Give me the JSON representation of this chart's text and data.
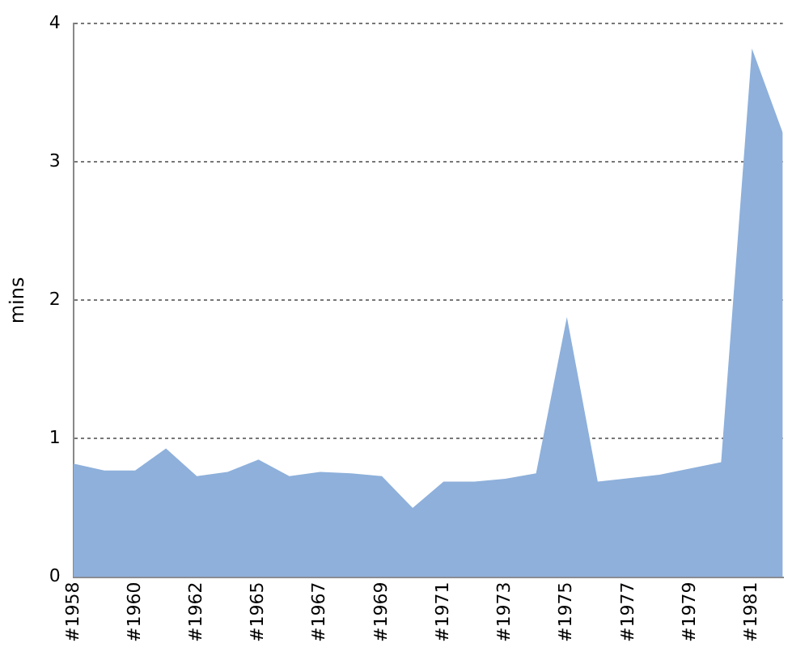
{
  "chart_data": {
    "type": "area",
    "ylabel": "mins",
    "categories": [
      "#1958",
      null,
      "#1960",
      null,
      "#1962",
      null,
      "#1965",
      null,
      "#1967",
      null,
      "#1969",
      null,
      "#1971",
      null,
      "#1973",
      null,
      "#1975",
      null,
      "#1977",
      null,
      "#1979",
      null,
      "#1981",
      null
    ],
    "series": [
      {
        "color": "#8eb0db",
        "values": [
          0.82,
          0.77,
          0.77,
          0.93,
          0.73,
          0.76,
          0.85,
          0.73,
          0.76,
          0.75,
          0.73,
          0.5,
          0.69,
          0.69,
          0.71,
          0.75,
          1.88,
          0.69,
          null,
          0.74,
          null,
          0.83,
          3.82,
          3.21
        ]
      }
    ],
    "ylim": [
      0,
      4
    ],
    "yticks": [
      0,
      1,
      2,
      3,
      4
    ],
    "grid": "y",
    "legend": false
  }
}
